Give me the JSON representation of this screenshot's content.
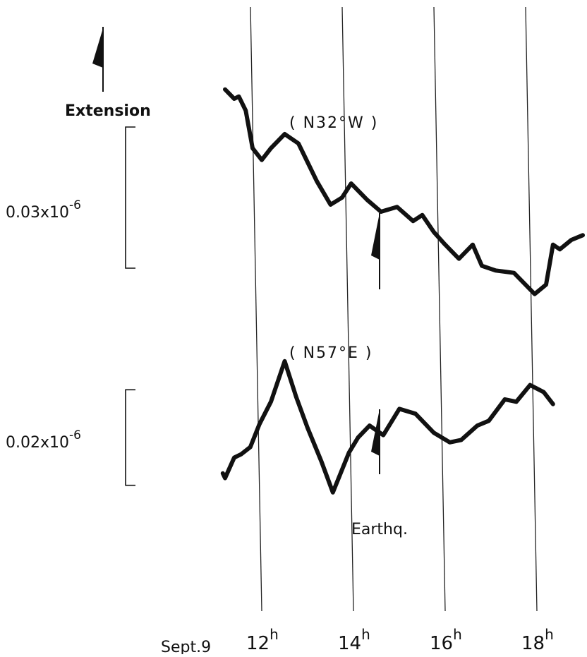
{
  "chart_data": {
    "type": "line",
    "x_unit": "hour",
    "x_ticks": [
      {
        "value": 12,
        "label": "12",
        "sup": "h"
      },
      {
        "value": 14,
        "label": "14",
        "sup": "h"
      },
      {
        "value": 16,
        "label": "16",
        "sup": "h"
      },
      {
        "value": 18,
        "label": "18",
        "sup": "h"
      }
    ],
    "date_label": "Sept.9",
    "xlim": [
      10.2,
      18.9
    ],
    "extension_label": "Extension",
    "earthquake": {
      "label": "Earthq.",
      "time": 14.6
    },
    "series": [
      {
        "name": "( N32°W )",
        "scale_label": "0.03x10",
        "scale_exp": "-6",
        "scale_value": 0.03,
        "ylim": [
          -0.016,
          0.035
        ],
        "x": [
          11.2,
          11.4,
          11.5,
          11.65,
          11.8,
          12.0,
          12.2,
          12.5,
          12.8,
          13.0,
          13.2,
          13.5,
          13.75,
          13.95,
          14.3,
          14.6,
          14.95,
          15.3,
          15.5,
          15.75,
          16.0,
          16.3,
          16.6,
          16.8,
          17.1,
          17.5,
          17.95,
          18.2,
          18.35,
          18.5,
          18.75,
          19.0
        ],
        "y": [
          0.0325,
          0.0305,
          0.031,
          0.028,
          0.02,
          0.0175,
          0.02,
          0.023,
          0.021,
          0.017,
          0.013,
          0.008,
          0.0095,
          0.0125,
          0.009,
          0.0065,
          0.0075,
          0.0045,
          0.0058,
          0.0022,
          -0.0005,
          -0.0035,
          -0.0005,
          -0.005,
          -0.006,
          -0.0065,
          -0.011,
          -0.009,
          -0.0005,
          -0.0015,
          0.0005,
          0.0015
        ]
      },
      {
        "name": "( N57°E )",
        "scale_label": "0.02x10",
        "scale_exp": "-6",
        "scale_value": 0.02,
        "ylim": [
          -0.011,
          0.023
        ],
        "x": [
          11.15,
          11.2,
          11.4,
          11.55,
          11.75,
          11.95,
          12.2,
          12.5,
          12.75,
          13.0,
          13.3,
          13.55,
          13.9,
          14.1,
          14.35,
          14.65,
          15.0,
          15.35,
          15.75,
          16.1,
          16.35,
          16.7,
          16.95,
          17.3,
          17.55,
          17.85,
          18.15,
          18.35
        ],
        "y": [
          -0.0015,
          -0.0025,
          0.0018,
          0.0025,
          0.004,
          0.0088,
          0.0135,
          0.022,
          0.0145,
          0.008,
          0.001,
          -0.0055,
          0.0028,
          0.006,
          0.0085,
          0.0065,
          0.012,
          0.011,
          0.007,
          0.005,
          0.0055,
          0.0085,
          0.0095,
          0.014,
          0.0135,
          0.017,
          0.0155,
          0.013
        ]
      }
    ],
    "grid": "vertical lines at tick hours",
    "legend": "none"
  }
}
